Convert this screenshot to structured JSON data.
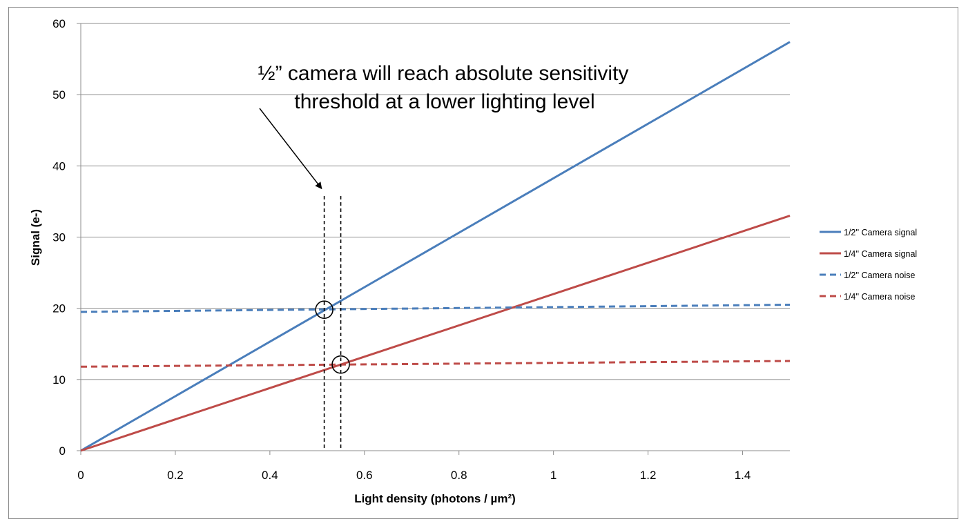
{
  "chart_data": {
    "type": "line",
    "title": "",
    "xlabel": "Light density (photons / µm²)",
    "ylabel": "Signal (e-)",
    "xlim": [
      0,
      1.5
    ],
    "ylim": [
      0,
      60
    ],
    "x_ticks": [
      0,
      0.2,
      0.4,
      0.6,
      0.8,
      1,
      1.2,
      1.4
    ],
    "x_tick_labels": [
      "0",
      "0.2",
      "0.4",
      "0.6",
      "0.8",
      "1",
      "1.2",
      "1.4"
    ],
    "y_ticks": [
      0,
      10,
      20,
      30,
      40,
      50,
      60
    ],
    "y_tick_labels": [
      "0",
      "10",
      "20",
      "30",
      "40",
      "50",
      "60"
    ],
    "grid": "horizontal",
    "legend_position": "right",
    "series": [
      {
        "name": "1/2'' Camera signal",
        "style": "solid",
        "color": "#4a7ebb",
        "x": [
          0,
          1.5
        ],
        "y": [
          0,
          57.4
        ]
      },
      {
        "name": "1/4'' Camera signal",
        "style": "solid",
        "color": "#be4b48",
        "x": [
          0,
          1.5
        ],
        "y": [
          0,
          33.0
        ]
      },
      {
        "name": "1/2'' Camera noise",
        "style": "dashed",
        "color": "#4a7ebb",
        "x": [
          0,
          1.5
        ],
        "y": [
          19.5,
          20.5
        ]
      },
      {
        "name": "1/4'' Camera noise",
        "style": "dashed",
        "color": "#be4b48",
        "x": [
          0,
          1.5
        ],
        "y": [
          11.8,
          12.6
        ]
      }
    ],
    "threshold_markers": [
      {
        "name": "1/2'' Camera threshold",
        "x": 0.515,
        "y": 19.8
      },
      {
        "name": "1/4'' Camera threshold",
        "x": 0.55,
        "y": 12.1
      }
    ],
    "annotation": {
      "lines": [
        "½” camera will reach absolute sensitivity",
        "threshold at a lower lighting level"
      ],
      "arrow_to_x": 0.508,
      "arrow_to_y": 36.8
    }
  }
}
